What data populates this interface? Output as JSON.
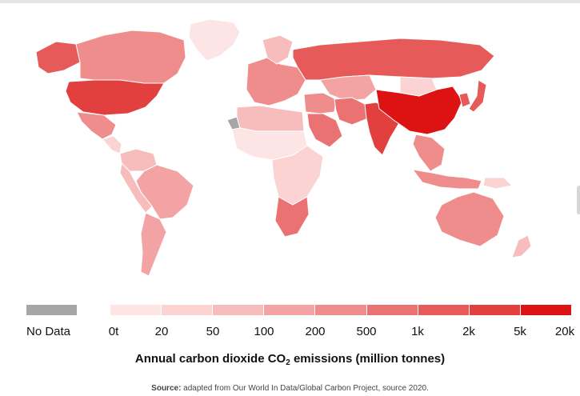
{
  "legend": {
    "no_data_label": "No Data",
    "no_data_color": "#a6a6a6",
    "bin_colors": [
      "#fde5e5",
      "#fbd3d3",
      "#f7bcbc",
      "#f3a3a3",
      "#ef8c8c",
      "#eb7272",
      "#e65a5a",
      "#e23f3f",
      "#dd1212"
    ],
    "ticks": [
      "0t",
      "20",
      "50",
      "100",
      "200",
      "500",
      "1k",
      "2k",
      "5k",
      "20k"
    ]
  },
  "title_parts": {
    "before": "Annual carbon dioxide CO",
    "subscript": "2",
    "after": " emissions (million tonnes)"
  },
  "source": {
    "label": "Source:",
    "text": " adapted from Our World In Data/Global Carbon Project, source 2020."
  },
  "map_regions": [
    {
      "name": "Alaska",
      "bin": 6
    },
    {
      "name": "Canada",
      "bin": 4
    },
    {
      "name": "Greenland",
      "bin": 0
    },
    {
      "name": "United States",
      "bin": 7
    },
    {
      "name": "Mexico",
      "bin": 4
    },
    {
      "name": "Central America",
      "bin": 1
    },
    {
      "name": "Colombia & Venezuela",
      "bin": 2
    },
    {
      "name": "Brazil",
      "bin": 3
    },
    {
      "name": "Peru & Bolivia",
      "bin": 2
    },
    {
      "name": "Argentina & Chile",
      "bin": 3
    },
    {
      "name": "Europe",
      "bin": 4
    },
    {
      "name": "Scandinavia",
      "bin": 2
    },
    {
      "name": "Russia",
      "bin": 6
    },
    {
      "name": "Kazakhstan & Central Asia",
      "bin": 3
    },
    {
      "name": "Western Sahara",
      "bin": -1
    },
    {
      "name": "North Africa",
      "bin": 2
    },
    {
      "name": "Sahel & West Africa",
      "bin": 0
    },
    {
      "name": "Central & East Africa",
      "bin": 1
    },
    {
      "name": "Southern Africa",
      "bin": 5
    },
    {
      "name": "Middle East",
      "bin": 4
    },
    {
      "name": "Saudi Arabia",
      "bin": 5
    },
    {
      "name": "Iran",
      "bin": 5
    },
    {
      "name": "India",
      "bin": 7
    },
    {
      "name": "China",
      "bin": 8
    },
    {
      "name": "Mongolia",
      "bin": 1
    },
    {
      "name": "Japan",
      "bin": 6
    },
    {
      "name": "Korea",
      "bin": 6
    },
    {
      "name": "Southeast Asia",
      "bin": 4
    },
    {
      "name": "Indonesia",
      "bin": 4
    },
    {
      "name": "Papua New Guinea",
      "bin": 1
    },
    {
      "name": "Australia",
      "bin": 4
    },
    {
      "name": "New Zealand",
      "bin": 2
    }
  ]
}
